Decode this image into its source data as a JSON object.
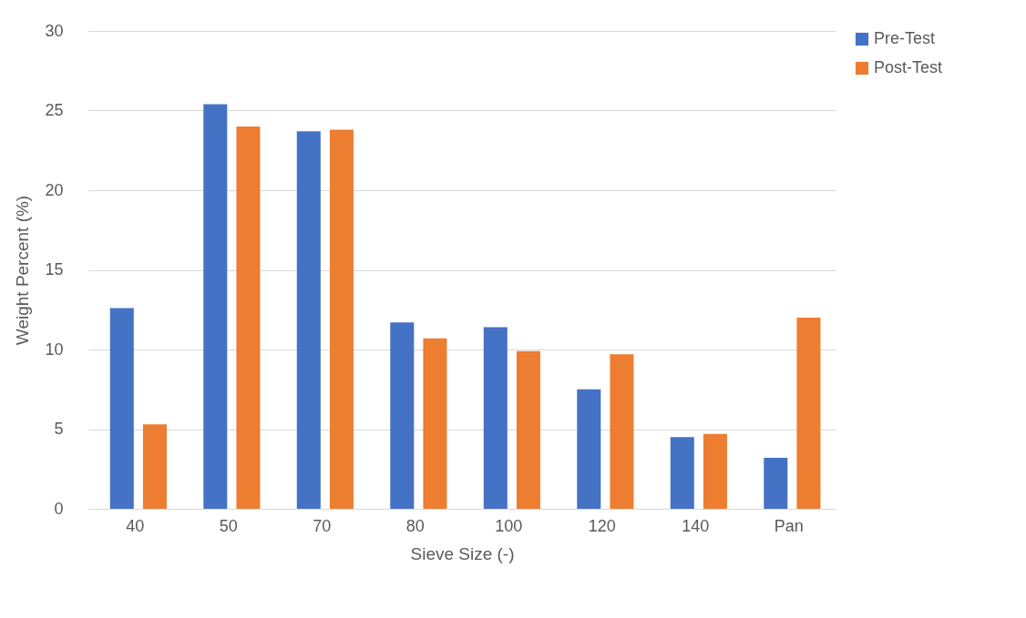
{
  "chart_data": {
    "type": "bar",
    "xlabel": "Sieve Size (-)",
    "ylabel": "Weight Percent (%)",
    "categories": [
      "40",
      "50",
      "70",
      "80",
      "100",
      "120",
      "140",
      "Pan"
    ],
    "series": [
      {
        "name": "Pre-Test",
        "color": "#4472c4",
        "values": [
          12.6,
          25.4,
          23.7,
          11.7,
          11.4,
          7.5,
          4.5,
          3.2
        ]
      },
      {
        "name": "Post-Test",
        "color": "#ed7d31",
        "values": [
          5.3,
          24.0,
          23.8,
          10.7,
          9.9,
          9.7,
          4.7,
          12.0
        ]
      }
    ],
    "ylim": [
      0,
      30
    ],
    "yticks": [
      0,
      5,
      10,
      15,
      20,
      25,
      30
    ],
    "grid": "y",
    "legend": "right"
  }
}
